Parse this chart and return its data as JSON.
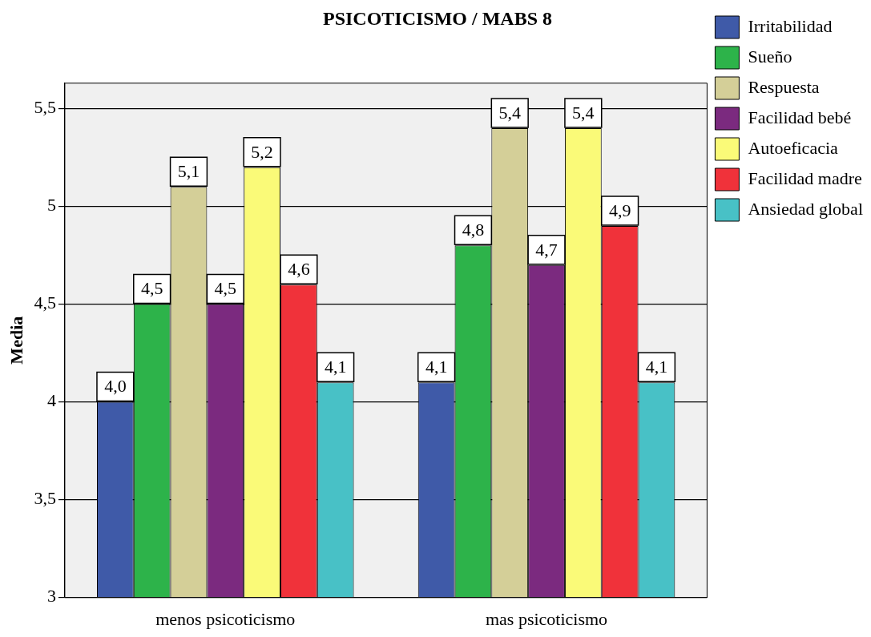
{
  "chart_data": {
    "type": "bar",
    "title": "PSICOTICISMO / MABS 8",
    "ylabel": "Media",
    "categories": [
      "menos psicoticismo",
      "mas psicoticismo"
    ],
    "series": [
      {
        "name": "Irritabilidad",
        "color": "#3f5aa8",
        "values": [
          4.0,
          4.1
        ],
        "value_labels": [
          "4,0",
          "4,1"
        ]
      },
      {
        "name": "Sueño",
        "color": "#2db34a",
        "values": [
          4.5,
          4.8
        ],
        "value_labels": [
          "4,5",
          "4,8"
        ]
      },
      {
        "name": "Respuesta",
        "color": "#d4cf98",
        "values": [
          5.1,
          5.4
        ],
        "value_labels": [
          "5,1",
          "5,4"
        ]
      },
      {
        "name": "Facilidad bebé",
        "color": "#7b2a7f",
        "values": [
          4.5,
          4.7
        ],
        "value_labels": [
          "4,5",
          "4,7"
        ]
      },
      {
        "name": "Autoeficacia",
        "color": "#fafa78",
        "values": [
          5.2,
          5.4
        ],
        "value_labels": [
          "5,2",
          "5,4"
        ]
      },
      {
        "name": "Facilidad madre",
        "color": "#f0323a",
        "values": [
          4.6,
          4.9
        ],
        "value_labels": [
          "4,6",
          "4,9"
        ]
      },
      {
        "name": "Ansiedad global",
        "color": "#48c1c6",
        "values": [
          4.1,
          4.1
        ],
        "value_labels": [
          "4,1",
          "4,1"
        ]
      }
    ],
    "ylim": [
      3,
      5.63
    ],
    "yticks": [
      3,
      {
        "value": 3.5,
        "label": "3,5"
      },
      4,
      {
        "value": 4.5,
        "label": "4,5"
      },
      5,
      {
        "value": 5.5,
        "label": "5,5"
      }
    ],
    "grid": "y",
    "legend": "right"
  }
}
